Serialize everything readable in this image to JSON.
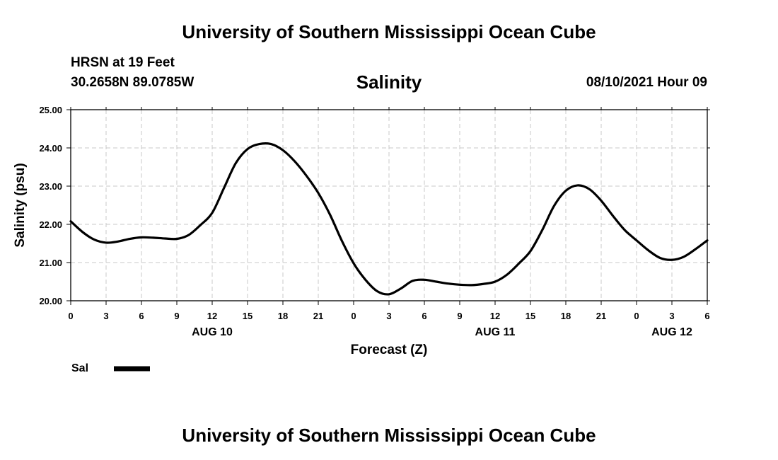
{
  "header": {
    "title": "University of Southern Mississippi Ocean Cube",
    "station": "HRSN at 19 Feet",
    "coords": "30.2658N  89.0785W",
    "datetime": "08/10/2021 Hour 09"
  },
  "footer": {
    "title": "University of Southern Mississippi Ocean Cube"
  },
  "chart_data": {
    "type": "line",
    "title": "Salinity",
    "xlabel": "Forecast (Z)",
    "ylabel": "Salinity (psu)",
    "ylim": [
      20.0,
      25.0
    ],
    "xlim": [
      0,
      54
    ],
    "grid": true,
    "y_ticks": [
      "20.00",
      "21.00",
      "22.00",
      "23.00",
      "24.00",
      "25.00"
    ],
    "x_ticks": [
      "0",
      "3",
      "6",
      "9",
      "12",
      "15",
      "18",
      "21",
      "0",
      "3",
      "6",
      "9",
      "12",
      "15",
      "18",
      "21",
      "0",
      "3",
      "6"
    ],
    "date_labels": [
      {
        "label": "AUG 10",
        "hour": 12
      },
      {
        "label": "AUG 11",
        "hour": 36
      },
      {
        "label": "AUG 12",
        "hour": 51
      }
    ],
    "legend": {
      "label": "Sal",
      "position": "bottom-left"
    },
    "series": [
      {
        "name": "Sal",
        "color": "#000000",
        "x": [
          0,
          1,
          2,
          3,
          4,
          5,
          6,
          7,
          8,
          9,
          10,
          11,
          12,
          13,
          14,
          15,
          16,
          17,
          18,
          19,
          20,
          21,
          22,
          23,
          24,
          25,
          26,
          27,
          28,
          29,
          30,
          31,
          32,
          33,
          34,
          35,
          36,
          37,
          38,
          39,
          40,
          41,
          42,
          43,
          44,
          45,
          46,
          47,
          48,
          49,
          50,
          51,
          52,
          53,
          54
        ],
        "values": [
          22.08,
          21.8,
          21.6,
          21.52,
          21.55,
          21.62,
          21.66,
          21.65,
          21.63,
          21.62,
          21.72,
          21.98,
          22.3,
          22.95,
          23.6,
          23.97,
          24.1,
          24.1,
          23.94,
          23.65,
          23.27,
          22.82,
          22.25,
          21.57,
          20.98,
          20.55,
          20.25,
          20.17,
          20.32,
          20.52,
          20.55,
          20.5,
          20.45,
          20.42,
          20.41,
          20.44,
          20.5,
          20.68,
          20.97,
          21.3,
          21.85,
          22.48,
          22.88,
          23.02,
          22.92,
          22.62,
          22.22,
          21.85,
          21.58,
          21.32,
          21.12,
          21.07,
          21.15,
          21.35,
          21.58
        ]
      }
    ]
  }
}
